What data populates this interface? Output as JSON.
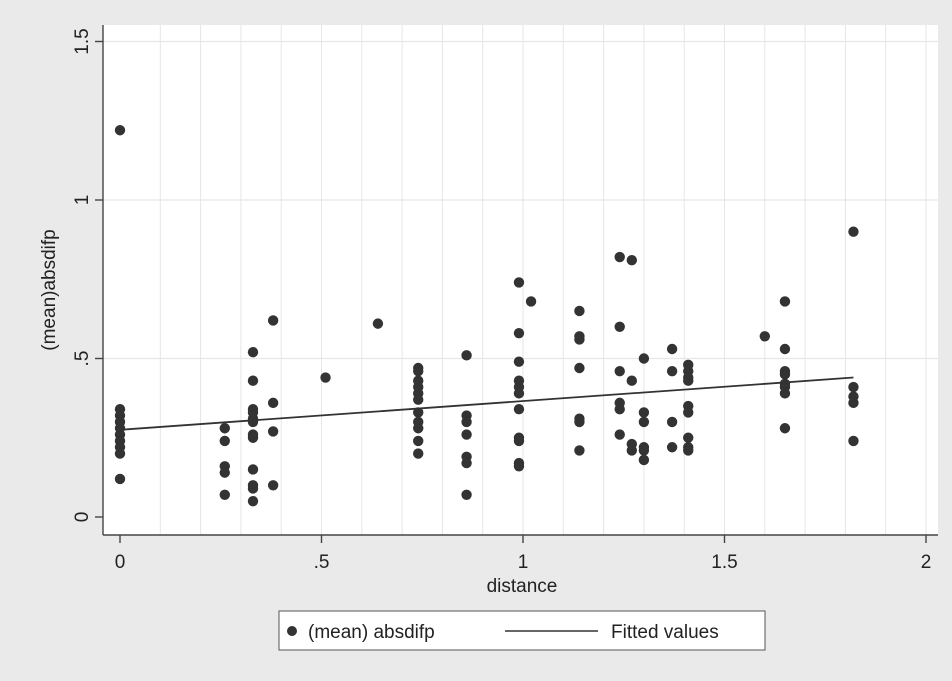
{
  "chart_data": {
    "type": "scatter",
    "xlabel": "distance",
    "ylabel": "(mean)absdifp",
    "xlim": [
      0,
      2
    ],
    "ylim": [
      0,
      1.5
    ],
    "xticks": [
      "0",
      ".5",
      "1",
      "1.5",
      "2"
    ],
    "yticks": [
      "0",
      ".5",
      "1",
      "1.5"
    ],
    "grid": "vertical and horizontal",
    "legend": {
      "placement": "bottom",
      "entries": [
        {
          "label": "(mean) absdifp",
          "marker": "dot"
        },
        {
          "label": "Fitted values",
          "marker": "line"
        }
      ]
    },
    "series": [
      {
        "name": "(mean) absdifp",
        "points": [
          [
            0,
            1.22
          ],
          [
            0,
            0.34
          ],
          [
            0,
            0.32
          ],
          [
            0,
            0.3
          ],
          [
            0,
            0.28
          ],
          [
            0,
            0.26
          ],
          [
            0,
            0.24
          ],
          [
            0,
            0.22
          ],
          [
            0,
            0.2
          ],
          [
            0,
            0.12
          ],
          [
            0.26,
            0.28
          ],
          [
            0.26,
            0.24
          ],
          [
            0.26,
            0.16
          ],
          [
            0.26,
            0.14
          ],
          [
            0.26,
            0.07
          ],
          [
            0.33,
            0.52
          ],
          [
            0.33,
            0.43
          ],
          [
            0.33,
            0.34
          ],
          [
            0.33,
            0.33
          ],
          [
            0.33,
            0.31
          ],
          [
            0.33,
            0.3
          ],
          [
            0.33,
            0.26
          ],
          [
            0.33,
            0.25
          ],
          [
            0.33,
            0.15
          ],
          [
            0.33,
            0.1
          ],
          [
            0.33,
            0.09
          ],
          [
            0.33,
            0.05
          ],
          [
            0.38,
            0.62
          ],
          [
            0.38,
            0.36
          ],
          [
            0.38,
            0.27
          ],
          [
            0.38,
            0.1
          ],
          [
            0.51,
            0.44
          ],
          [
            0.64,
            0.61
          ],
          [
            0.74,
            0.47
          ],
          [
            0.74,
            0.46
          ],
          [
            0.74,
            0.43
          ],
          [
            0.74,
            0.41
          ],
          [
            0.74,
            0.39
          ],
          [
            0.74,
            0.37
          ],
          [
            0.74,
            0.33
          ],
          [
            0.74,
            0.3
          ],
          [
            0.74,
            0.28
          ],
          [
            0.74,
            0.24
          ],
          [
            0.74,
            0.2
          ],
          [
            0.86,
            0.51
          ],
          [
            0.86,
            0.32
          ],
          [
            0.86,
            0.3
          ],
          [
            0.86,
            0.26
          ],
          [
            0.86,
            0.19
          ],
          [
            0.86,
            0.17
          ],
          [
            0.86,
            0.07
          ],
          [
            0.99,
            0.74
          ],
          [
            0.99,
            0.58
          ],
          [
            0.99,
            0.49
          ],
          [
            0.99,
            0.43
          ],
          [
            0.99,
            0.41
          ],
          [
            0.99,
            0.39
          ],
          [
            0.99,
            0.34
          ],
          [
            0.99,
            0.25
          ],
          [
            0.99,
            0.24
          ],
          [
            0.99,
            0.17
          ],
          [
            0.99,
            0.16
          ],
          [
            1.02,
            0.68
          ],
          [
            1.14,
            0.65
          ],
          [
            1.14,
            0.57
          ],
          [
            1.14,
            0.56
          ],
          [
            1.14,
            0.47
          ],
          [
            1.14,
            0.31
          ],
          [
            1.14,
            0.3
          ],
          [
            1.14,
            0.21
          ],
          [
            1.24,
            0.82
          ],
          [
            1.24,
            0.6
          ],
          [
            1.24,
            0.46
          ],
          [
            1.24,
            0.36
          ],
          [
            1.24,
            0.34
          ],
          [
            1.24,
            0.26
          ],
          [
            1.27,
            0.81
          ],
          [
            1.27,
            0.43
          ],
          [
            1.27,
            0.23
          ],
          [
            1.27,
            0.21
          ],
          [
            1.3,
            0.5
          ],
          [
            1.3,
            0.33
          ],
          [
            1.3,
            0.3
          ],
          [
            1.3,
            0.22
          ],
          [
            1.3,
            0.21
          ],
          [
            1.3,
            0.18
          ],
          [
            1.37,
            0.53
          ],
          [
            1.37,
            0.46
          ],
          [
            1.37,
            0.3
          ],
          [
            1.37,
            0.22
          ],
          [
            1.41,
            0.48
          ],
          [
            1.41,
            0.46
          ],
          [
            1.41,
            0.44
          ],
          [
            1.41,
            0.43
          ],
          [
            1.41,
            0.35
          ],
          [
            1.41,
            0.33
          ],
          [
            1.41,
            0.25
          ],
          [
            1.41,
            0.22
          ],
          [
            1.41,
            0.21
          ],
          [
            1.6,
            0.57
          ],
          [
            1.65,
            0.68
          ],
          [
            1.65,
            0.53
          ],
          [
            1.65,
            0.46
          ],
          [
            1.65,
            0.45
          ],
          [
            1.65,
            0.42
          ],
          [
            1.65,
            0.41
          ],
          [
            1.65,
            0.39
          ],
          [
            1.65,
            0.28
          ],
          [
            1.82,
            0.9
          ],
          [
            1.82,
            0.41
          ],
          [
            1.82,
            0.38
          ],
          [
            1.82,
            0.36
          ],
          [
            1.82,
            0.24
          ]
        ]
      },
      {
        "name": "Fitted values",
        "points": [
          [
            0,
            0.275
          ],
          [
            1.82,
            0.44
          ]
        ]
      }
    ],
    "colors": {
      "background": "#eaeaea",
      "plot_area": "#ffffff",
      "grid": "#e6e6e6",
      "marker": "#333333",
      "fit_line": "#333333"
    }
  }
}
